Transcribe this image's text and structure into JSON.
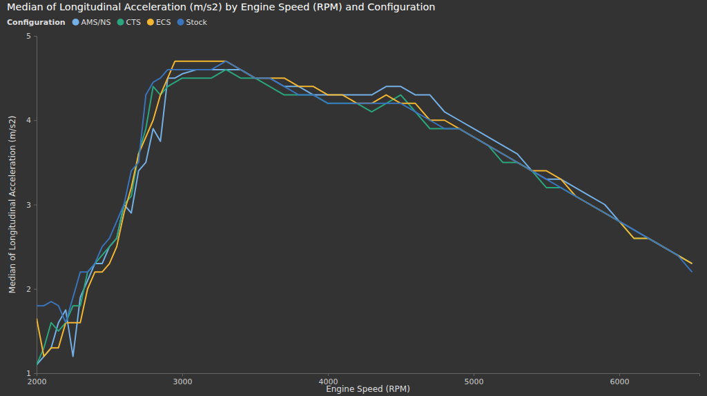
{
  "chart_data": {
    "type": "line",
    "title": "Median of Longitudinal Acceleration (m/s2) by Engine Speed (RPM) and Configuration",
    "legend_title": "Configuration",
    "legend": "top-left",
    "grid": false,
    "x_label": "Engine Speed (RPM)",
    "y_label": "Median of Longitudinal Acceleration (m/s2)",
    "xlim": [
      2000,
      6550
    ],
    "xticks": [
      2000,
      3000,
      4000,
      5000,
      6000
    ],
    "ylim": [
      1,
      5
    ],
    "yticks": [
      1,
      2,
      3,
      4,
      5
    ],
    "x": [
      2000,
      2050,
      2100,
      2150,
      2200,
      2250,
      2300,
      2350,
      2400,
      2450,
      2500,
      2550,
      2600,
      2650,
      2700,
      2750,
      2800,
      2850,
      2900,
      2950,
      3000,
      3100,
      3200,
      3300,
      3400,
      3500,
      3600,
      3700,
      3800,
      3900,
      4000,
      4100,
      4200,
      4300,
      4400,
      4500,
      4600,
      4700,
      4800,
      4900,
      5000,
      5100,
      5200,
      5300,
      5400,
      5500,
      5600,
      5700,
      5800,
      5900,
      6000,
      6100,
      6200,
      6300,
      6400,
      6500
    ],
    "series": [
      {
        "name": "AMS/NS",
        "color": "#74b0e6",
        "values": [
          1.1,
          1.2,
          1.3,
          1.6,
          1.75,
          1.2,
          1.9,
          2.1,
          2.3,
          2.3,
          2.5,
          2.6,
          3.0,
          2.9,
          3.4,
          3.5,
          3.9,
          3.75,
          4.5,
          4.5,
          4.55,
          4.6,
          4.6,
          4.6,
          4.6,
          4.5,
          4.5,
          4.4,
          4.4,
          4.3,
          4.3,
          4.3,
          4.3,
          4.3,
          4.4,
          4.4,
          4.3,
          4.3,
          4.1,
          4.0,
          3.9,
          3.8,
          3.7,
          3.6,
          3.4,
          3.3,
          3.3,
          3.2,
          3.1,
          3.0,
          2.8,
          2.7,
          2.6,
          2.5,
          2.4,
          2.3
        ]
      },
      {
        "name": "CTS",
        "color": "#2aa67f",
        "values": [
          1.1,
          1.3,
          1.6,
          1.5,
          1.6,
          1.8,
          1.8,
          2.2,
          2.3,
          2.4,
          2.5,
          2.6,
          3.0,
          3.1,
          3.6,
          3.9,
          4.4,
          4.3,
          4.4,
          4.45,
          4.5,
          4.5,
          4.5,
          4.6,
          4.5,
          4.5,
          4.4,
          4.3,
          4.3,
          4.3,
          4.2,
          4.2,
          4.2,
          4.1,
          4.2,
          4.3,
          4.1,
          3.9,
          3.9,
          3.9,
          3.8,
          3.7,
          3.5,
          3.5,
          3.4,
          3.2,
          3.2,
          3.1,
          3.0,
          2.9,
          2.8,
          2.6,
          2.6,
          2.5,
          2.4,
          2.3
        ]
      },
      {
        "name": "ECS",
        "color": "#f2b632",
        "values": [
          1.65,
          1.2,
          1.3,
          1.3,
          1.6,
          1.6,
          1.6,
          2.0,
          2.2,
          2.2,
          2.3,
          2.5,
          2.9,
          3.2,
          3.6,
          3.8,
          4.0,
          4.3,
          4.5,
          4.7,
          4.7,
          4.7,
          4.7,
          4.7,
          4.6,
          4.5,
          4.5,
          4.5,
          4.4,
          4.4,
          4.3,
          4.3,
          4.2,
          4.2,
          4.3,
          4.2,
          4.2,
          4.0,
          4.0,
          3.9,
          3.8,
          3.7,
          3.6,
          3.5,
          3.4,
          3.4,
          3.3,
          3.1,
          3.0,
          2.9,
          2.8,
          2.6,
          2.6,
          2.5,
          2.4,
          2.3
        ]
      },
      {
        "name": "Stock",
        "color": "#3a74bb",
        "values": [
          1.8,
          1.8,
          1.85,
          1.8,
          1.6,
          1.9,
          2.2,
          2.2,
          2.3,
          2.5,
          2.6,
          2.8,
          3.0,
          3.4,
          3.5,
          4.3,
          4.45,
          4.5,
          4.6,
          4.6,
          4.6,
          4.6,
          4.6,
          4.7,
          4.6,
          4.5,
          4.5,
          4.4,
          4.3,
          4.3,
          4.2,
          4.2,
          4.2,
          4.2,
          4.2,
          4.2,
          4.1,
          4.0,
          3.9,
          3.9,
          3.8,
          3.7,
          3.6,
          3.5,
          3.4,
          3.3,
          3.2,
          3.1,
          3.0,
          2.9,
          2.8,
          2.7,
          2.6,
          2.5,
          2.4,
          2.2
        ]
      }
    ]
  }
}
